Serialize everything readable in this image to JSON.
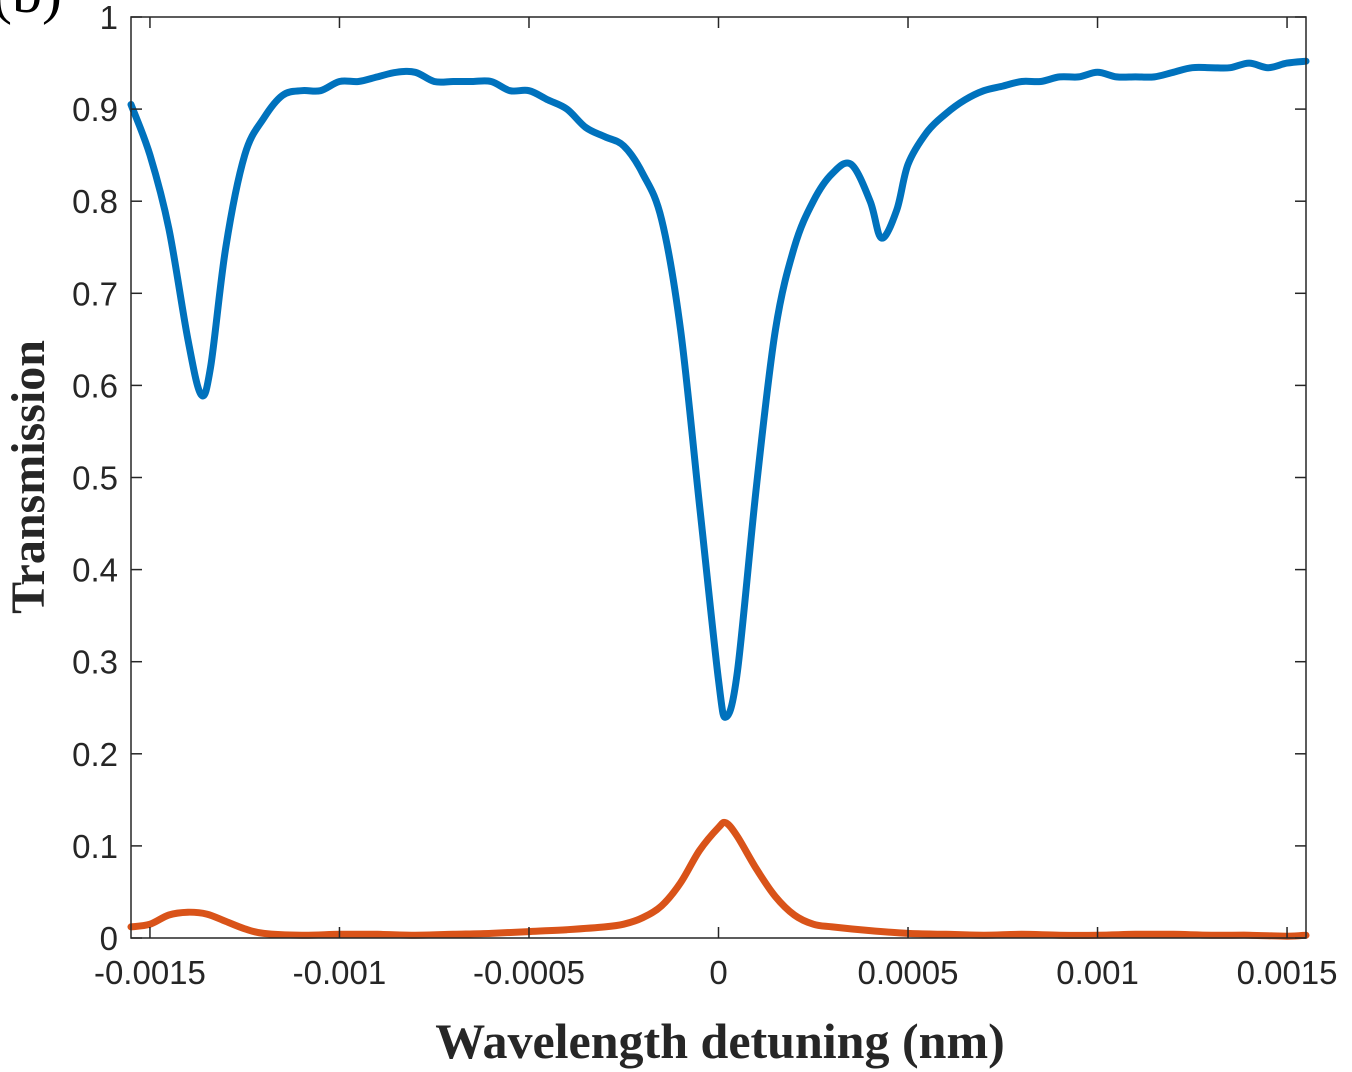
{
  "chart_data": {
    "type": "line",
    "panel_label": "(b)",
    "title": "",
    "xlabel": "Wavelength detuning (nm)",
    "ylabel": "Transmission",
    "xlim": [
      -0.00155,
      0.00155
    ],
    "ylim": [
      0,
      1
    ],
    "x_ticks": [
      -0.0015,
      -0.001,
      -0.0005,
      0,
      0.0005,
      0.001,
      0.0015
    ],
    "x_tick_labels": [
      "-0.0015",
      "-0.001",
      "-0.0005",
      "0",
      "0.0005",
      "0.001",
      "0.0015"
    ],
    "y_ticks": [
      0,
      0.1,
      0.2,
      0.3,
      0.4,
      0.5,
      0.6,
      0.7,
      0.8,
      0.9,
      1
    ],
    "y_tick_labels": [
      "0",
      "0.1",
      "0.2",
      "0.3",
      "0.4",
      "0.5",
      "0.6",
      "0.7",
      "0.8",
      "0.9",
      "1"
    ],
    "grid": false,
    "legend": "none",
    "series": [
      {
        "color": "#0072BD",
        "points": [
          [
            -0.00155,
            0.905
          ],
          [
            -0.0015,
            0.85
          ],
          [
            -0.00145,
            0.77
          ],
          [
            -0.0014,
            0.65
          ],
          [
            -0.001365,
            0.59
          ],
          [
            -0.00134,
            0.62
          ],
          [
            -0.0013,
            0.75
          ],
          [
            -0.00125,
            0.85
          ],
          [
            -0.0012,
            0.89
          ],
          [
            -0.00115,
            0.915
          ],
          [
            -0.0011,
            0.92
          ],
          [
            -0.00105,
            0.92
          ],
          [
            -0.001,
            0.93
          ],
          [
            -0.00095,
            0.93
          ],
          [
            -0.0009,
            0.935
          ],
          [
            -0.00085,
            0.94
          ],
          [
            -0.0008,
            0.94
          ],
          [
            -0.00075,
            0.93
          ],
          [
            -0.0007,
            0.93
          ],
          [
            -0.00065,
            0.93
          ],
          [
            -0.0006,
            0.93
          ],
          [
            -0.00055,
            0.92
          ],
          [
            -0.0005,
            0.92
          ],
          [
            -0.00045,
            0.91
          ],
          [
            -0.0004,
            0.9
          ],
          [
            -0.00035,
            0.88
          ],
          [
            -0.0003,
            0.87
          ],
          [
            -0.00025,
            0.86
          ],
          [
            -0.0002,
            0.83
          ],
          [
            -0.00015,
            0.78
          ],
          [
            -0.0001,
            0.66
          ],
          [
            -5e-05,
            0.47
          ],
          [
            0.0,
            0.28
          ],
          [
            2e-05,
            0.24
          ],
          [
            5e-05,
            0.29
          ],
          [
            0.0001,
            0.49
          ],
          [
            0.00015,
            0.66
          ],
          [
            0.0002,
            0.75
          ],
          [
            0.00025,
            0.8
          ],
          [
            0.0003,
            0.83
          ],
          [
            0.00035,
            0.84
          ],
          [
            0.0004,
            0.8
          ],
          [
            0.00043,
            0.76
          ],
          [
            0.00047,
            0.79
          ],
          [
            0.0005,
            0.84
          ],
          [
            0.00055,
            0.875
          ],
          [
            0.0006,
            0.895
          ],
          [
            0.00065,
            0.91
          ],
          [
            0.0007,
            0.92
          ],
          [
            0.00075,
            0.925
          ],
          [
            0.0008,
            0.93
          ],
          [
            0.00085,
            0.93
          ],
          [
            0.0009,
            0.935
          ],
          [
            0.00095,
            0.935
          ],
          [
            0.001,
            0.94
          ],
          [
            0.00105,
            0.935
          ],
          [
            0.0011,
            0.935
          ],
          [
            0.00115,
            0.935
          ],
          [
            0.0012,
            0.94
          ],
          [
            0.00125,
            0.945
          ],
          [
            0.0013,
            0.945
          ],
          [
            0.00135,
            0.945
          ],
          [
            0.0014,
            0.95
          ],
          [
            0.00145,
            0.945
          ],
          [
            0.0015,
            0.95
          ],
          [
            0.00155,
            0.952
          ]
        ]
      },
      {
        "color": "#D95319",
        "points": [
          [
            -0.00155,
            0.012
          ],
          [
            -0.0015,
            0.015
          ],
          [
            -0.00145,
            0.025
          ],
          [
            -0.0014,
            0.028
          ],
          [
            -0.00135,
            0.026
          ],
          [
            -0.0013,
            0.018
          ],
          [
            -0.00125,
            0.01
          ],
          [
            -0.0012,
            0.005
          ],
          [
            -0.0011,
            0.003
          ],
          [
            -0.001,
            0.004
          ],
          [
            -0.0009,
            0.004
          ],
          [
            -0.0008,
            0.003
          ],
          [
            -0.0007,
            0.004
          ],
          [
            -0.0006,
            0.005
          ],
          [
            -0.0005,
            0.007
          ],
          [
            -0.0004,
            0.009
          ],
          [
            -0.0003,
            0.012
          ],
          [
            -0.00025,
            0.015
          ],
          [
            -0.0002,
            0.022
          ],
          [
            -0.00015,
            0.035
          ],
          [
            -0.0001,
            0.06
          ],
          [
            -5e-05,
            0.095
          ],
          [
            0.0,
            0.12
          ],
          [
            2e-05,
            0.125
          ],
          [
            5e-05,
            0.11
          ],
          [
            0.0001,
            0.075
          ],
          [
            0.00015,
            0.045
          ],
          [
            0.0002,
            0.025
          ],
          [
            0.00025,
            0.015
          ],
          [
            0.0003,
            0.012
          ],
          [
            0.0004,
            0.008
          ],
          [
            0.0005,
            0.005
          ],
          [
            0.0006,
            0.004
          ],
          [
            0.0007,
            0.003
          ],
          [
            0.0008,
            0.004
          ],
          [
            0.0009,
            0.003
          ],
          [
            0.001,
            0.003
          ],
          [
            0.0011,
            0.004
          ],
          [
            0.0012,
            0.004
          ],
          [
            0.0013,
            0.003
          ],
          [
            0.0014,
            0.003
          ],
          [
            0.0015,
            0.002
          ],
          [
            0.00155,
            0.003
          ]
        ]
      }
    ]
  }
}
